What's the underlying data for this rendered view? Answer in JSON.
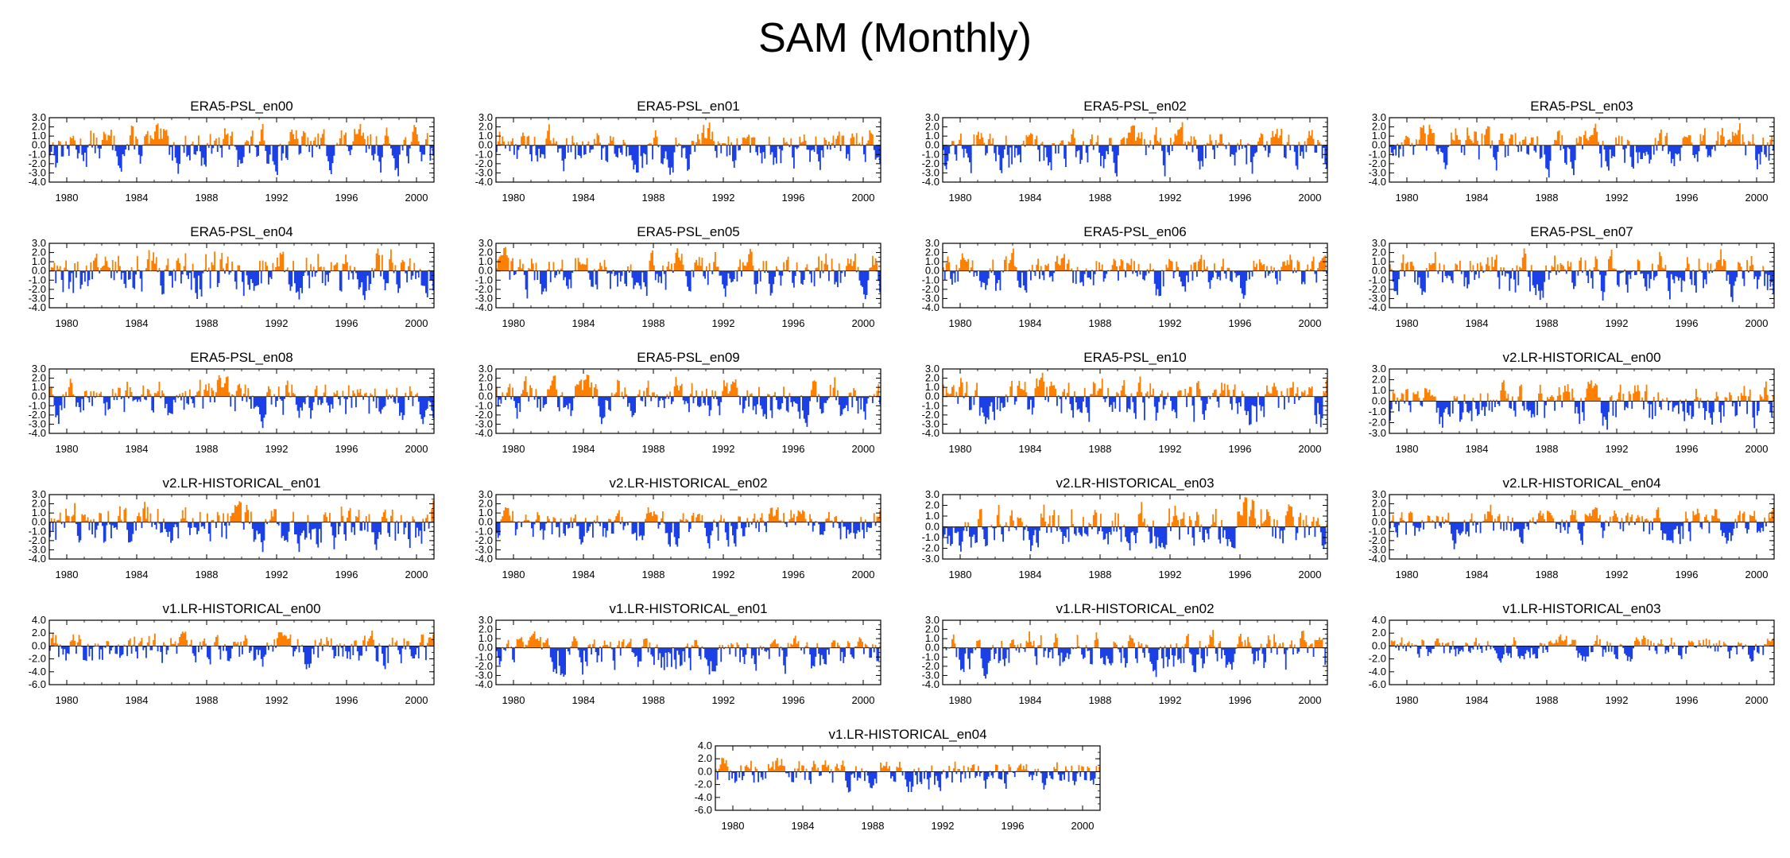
{
  "title": "SAM (Monthly)",
  "colors": {
    "positive": "#ff8000",
    "negative": "#1a40e6",
    "axis": "#000000"
  },
  "chart_data": [
    {
      "type": "area",
      "title": "ERA5-PSL_en00",
      "ylim": [
        -4,
        3
      ],
      "yticks": [
        "3.0",
        "2.0",
        "1.0",
        "0.0",
        "-1.0",
        "-2.0",
        "-3.0",
        "-4.0"
      ],
      "xticks": [
        "1980",
        "1984",
        "1988",
        "1992",
        "1996",
        "2000"
      ],
      "x_range": [
        1979,
        2001
      ],
      "y_range": [
        -3.5,
        2.6
      ]
    },
    {
      "type": "area",
      "title": "ERA5-PSL_en01",
      "ylim": [
        -4,
        3
      ],
      "yticks": [
        "3.0",
        "2.0",
        "1.0",
        "0.0",
        "-1.0",
        "-2.0",
        "-3.0",
        "-4.0"
      ],
      "xticks": [
        "1980",
        "1984",
        "1988",
        "1992",
        "1996",
        "2000"
      ],
      "x_range": [
        1979,
        2001
      ],
      "y_range": [
        -3.5,
        2.6
      ]
    },
    {
      "type": "area",
      "title": "ERA5-PSL_en02",
      "ylim": [
        -4,
        3
      ],
      "yticks": [
        "3.0",
        "2.0",
        "1.0",
        "0.0",
        "-1.0",
        "-2.0",
        "-3.0",
        "-4.0"
      ],
      "xticks": [
        "1980",
        "1984",
        "1988",
        "1992",
        "1996",
        "2000"
      ],
      "x_range": [
        1979,
        2001
      ],
      "y_range": [
        -3.5,
        2.6
      ]
    },
    {
      "type": "area",
      "title": "ERA5-PSL_en03",
      "ylim": [
        -4,
        3
      ],
      "yticks": [
        "3.0",
        "2.0",
        "1.0",
        "0.0",
        "-1.0",
        "-2.0",
        "-3.0",
        "-4.0"
      ],
      "xticks": [
        "1980",
        "1984",
        "1988",
        "1992",
        "1996",
        "2000"
      ],
      "x_range": [
        1979,
        2001
      ],
      "y_range": [
        -3.5,
        2.6
      ]
    },
    {
      "type": "area",
      "title": "ERA5-PSL_en04",
      "ylim": [
        -4,
        3
      ],
      "yticks": [
        "3.0",
        "2.0",
        "1.0",
        "0.0",
        "-1.0",
        "-2.0",
        "-3.0",
        "-4.0"
      ],
      "xticks": [
        "1980",
        "1984",
        "1988",
        "1992",
        "1996",
        "2000"
      ],
      "x_range": [
        1979,
        2001
      ],
      "y_range": [
        -3.5,
        2.6
      ]
    },
    {
      "type": "area",
      "title": "ERA5-PSL_en05",
      "ylim": [
        -4,
        3
      ],
      "yticks": [
        "3.0",
        "2.0",
        "1.0",
        "0.0",
        "-1.0",
        "-2.0",
        "-3.0",
        "-4.0"
      ],
      "xticks": [
        "1980",
        "1984",
        "1988",
        "1992",
        "1996",
        "2000"
      ],
      "x_range": [
        1979,
        2001
      ],
      "y_range": [
        -3.5,
        2.6
      ]
    },
    {
      "type": "area",
      "title": "ERA5-PSL_en06",
      "ylim": [
        -4,
        3
      ],
      "yticks": [
        "3.0",
        "2.0",
        "1.0",
        "0.0",
        "-1.0",
        "-2.0",
        "-3.0",
        "-4.0"
      ],
      "xticks": [
        "1980",
        "1984",
        "1988",
        "1992",
        "1996",
        "2000"
      ],
      "x_range": [
        1979,
        2001
      ],
      "y_range": [
        -3.5,
        2.6
      ]
    },
    {
      "type": "area",
      "title": "ERA5-PSL_en07",
      "ylim": [
        -4,
        3
      ],
      "yticks": [
        "3.0",
        "2.0",
        "1.0",
        "0.0",
        "-1.0",
        "-2.0",
        "-3.0",
        "-4.0"
      ],
      "xticks": [
        "1980",
        "1984",
        "1988",
        "1992",
        "1996",
        "2000"
      ],
      "x_range": [
        1979,
        2001
      ],
      "y_range": [
        -3.5,
        2.6
      ]
    },
    {
      "type": "area",
      "title": "ERA5-PSL_en08",
      "ylim": [
        -4,
        3
      ],
      "yticks": [
        "3.0",
        "2.0",
        "1.0",
        "0.0",
        "-1.0",
        "-2.0",
        "-3.0",
        "-4.0"
      ],
      "xticks": [
        "1980",
        "1984",
        "1988",
        "1992",
        "1996",
        "2000"
      ],
      "x_range": [
        1979,
        2001
      ],
      "y_range": [
        -3.5,
        2.6
      ]
    },
    {
      "type": "area",
      "title": "ERA5-PSL_en09",
      "ylim": [
        -4,
        3
      ],
      "yticks": [
        "3.0",
        "2.0",
        "1.0",
        "0.0",
        "-1.0",
        "-2.0",
        "-3.0",
        "-4.0"
      ],
      "xticks": [
        "1980",
        "1984",
        "1988",
        "1992",
        "1996",
        "2000"
      ],
      "x_range": [
        1979,
        2001
      ],
      "y_range": [
        -3.5,
        2.6
      ]
    },
    {
      "type": "area",
      "title": "ERA5-PSL_en10",
      "ylim": [
        -4,
        3
      ],
      "yticks": [
        "3.0",
        "2.0",
        "1.0",
        "0.0",
        "-1.0",
        "-2.0",
        "-3.0",
        "-4.0"
      ],
      "xticks": [
        "1980",
        "1984",
        "1988",
        "1992",
        "1996",
        "2000"
      ],
      "x_range": [
        1979,
        2001
      ],
      "y_range": [
        -3.5,
        2.6
      ]
    },
    {
      "type": "area",
      "title": "v2.LR-HISTORICAL_en00",
      "ylim": [
        -3,
        3
      ],
      "yticks": [
        "3.0",
        "2.0",
        "1.0",
        "0.0",
        "-1.0",
        "-2.0",
        "-3.0"
      ],
      "xticks": [
        "1980",
        "1984",
        "1988",
        "1992",
        "1996",
        "2000"
      ],
      "x_range": [
        1979,
        2001
      ],
      "y_range": [
        -2.8,
        2.2
      ]
    },
    {
      "type": "area",
      "title": "v2.LR-HISTORICAL_en01",
      "ylim": [
        -4,
        3
      ],
      "yticks": [
        "3.0",
        "2.0",
        "1.0",
        "0.0",
        "-1.0",
        "-2.0",
        "-3.0",
        "-4.0"
      ],
      "xticks": [
        "1980",
        "1984",
        "1988",
        "1992",
        "1996",
        "2000"
      ],
      "x_range": [
        1979,
        2001
      ],
      "y_range": [
        -3.5,
        2.6
      ]
    },
    {
      "type": "area",
      "title": "v2.LR-HISTORICAL_en02",
      "ylim": [
        -4,
        3
      ],
      "yticks": [
        "3.0",
        "2.0",
        "1.0",
        "0.0",
        "-1.0",
        "-2.0",
        "-3.0",
        "-4.0"
      ],
      "xticks": [
        "1980",
        "1984",
        "1988",
        "1992",
        "1996",
        "2000"
      ],
      "x_range": [
        1979,
        2001
      ],
      "y_range": [
        -3.0,
        1.8
      ]
    },
    {
      "type": "area",
      "title": "v2.LR-HISTORICAL_en03",
      "ylim": [
        -3,
        3
      ],
      "yticks": [
        "3.0",
        "2.0",
        "1.0",
        "0.0",
        "-1.0",
        "-2.0",
        "-3.0"
      ],
      "xticks": [
        "1980",
        "1984",
        "1988",
        "1992",
        "1996",
        "2000"
      ],
      "x_range": [
        1979,
        2001
      ],
      "y_range": [
        -2.6,
        2.9
      ]
    },
    {
      "type": "area",
      "title": "v2.LR-HISTORICAL_en04",
      "ylim": [
        -4,
        3
      ],
      "yticks": [
        "3.0",
        "2.0",
        "1.0",
        "0.0",
        "-1.0",
        "-2.0",
        "-3.0",
        "-4.0"
      ],
      "xticks": [
        "1980",
        "1984",
        "1988",
        "1992",
        "1996",
        "2000"
      ],
      "x_range": [
        1979,
        2001
      ],
      "y_range": [
        -3.0,
        1.9
      ]
    },
    {
      "type": "area",
      "title": "v1.LR-HISTORICAL_en00",
      "ylim": [
        -6,
        4
      ],
      "yticks": [
        "4.0",
        "2.0",
        "0.0",
        "-2.0",
        "-4.0",
        "-6.0"
      ],
      "xticks": [
        "1980",
        "1984",
        "1988",
        "1992",
        "1996",
        "2000"
      ],
      "x_range": [
        1979,
        2001
      ],
      "y_range": [
        -4.2,
        2.5
      ]
    },
    {
      "type": "area",
      "title": "v1.LR-HISTORICAL_en01",
      "ylim": [
        -4,
        3
      ],
      "yticks": [
        "3.0",
        "2.0",
        "1.0",
        "0.0",
        "-1.0",
        "-2.0",
        "-3.0",
        "-4.0"
      ],
      "xticks": [
        "1980",
        "1984",
        "1988",
        "1992",
        "1996",
        "2000"
      ],
      "x_range": [
        1979,
        2001
      ],
      "y_range": [
        -3.2,
        1.8
      ]
    },
    {
      "type": "area",
      "title": "v1.LR-HISTORICAL_en02",
      "ylim": [
        -4,
        3
      ],
      "yticks": [
        "3.0",
        "2.0",
        "1.0",
        "0.0",
        "-1.0",
        "-2.0",
        "-3.0",
        "-4.0"
      ],
      "xticks": [
        "1980",
        "1984",
        "1988",
        "1992",
        "1996",
        "2000"
      ],
      "x_range": [
        1979,
        2001
      ],
      "y_range": [
        -3.5,
        2.2
      ]
    },
    {
      "type": "area",
      "title": "v1.LR-HISTORICAL_en03",
      "ylim": [
        -6,
        4
      ],
      "yticks": [
        "4.0",
        "2.0",
        "0.0",
        "-2.0",
        "-4.0",
        "-6.0"
      ],
      "xticks": [
        "1980",
        "1984",
        "1988",
        "1992",
        "1996",
        "2000"
      ],
      "x_range": [
        1979,
        2001
      ],
      "y_range": [
        -2.8,
        1.9
      ]
    },
    {
      "type": "area",
      "title": "v1.LR-HISTORICAL_en04",
      "ylim": [
        -6,
        4
      ],
      "yticks": [
        "4.0",
        "2.0",
        "0.0",
        "-2.0",
        "-4.0",
        "-6.0"
      ],
      "xticks": [
        "1980",
        "1984",
        "1988",
        "1992",
        "1996",
        "2000"
      ],
      "x_range": [
        1979,
        2001
      ],
      "y_range": [
        -3.5,
        2.2
      ]
    }
  ]
}
